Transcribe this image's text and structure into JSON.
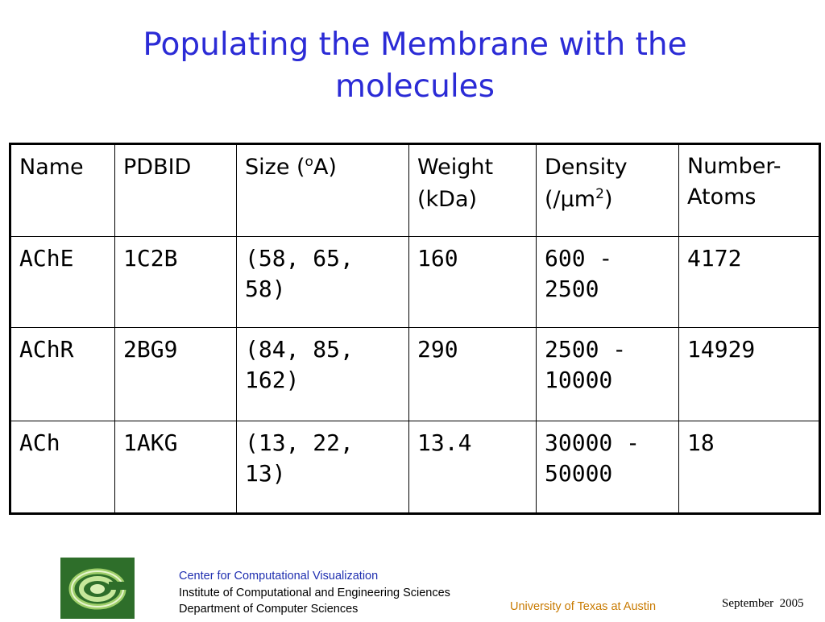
{
  "title": "Populating the Membrane with the molecules",
  "table": {
    "headers": {
      "name": "Name",
      "pdbid": "PDBID",
      "size_pre": "Size (",
      "size_sup": "o",
      "size_post": "A)",
      "weight_l1": "Weight",
      "weight_l2": "(kDa)",
      "density_pre": "Density",
      "density_l2a": "(/μm",
      "density_sup": "2",
      "density_l2b": ")",
      "atoms": "Number-Atoms"
    },
    "rows": [
      {
        "name": "AChE",
        "pdbid": "1C2B",
        "size": "(58, 65, 58)",
        "weight": "160",
        "density": "600 - 2500",
        "atoms": "4172"
      },
      {
        "name": "AChR",
        "pdbid": "2BG9",
        "size": "(84, 85, 162)",
        "weight": "290",
        "density": "2500 - 10000",
        "atoms": "14929"
      },
      {
        "name": "ACh",
        "pdbid": "1AKG",
        "size": "(13, 22, 13)",
        "weight": "13.4",
        "density": "30000 - 50000",
        "atoms": "18"
      }
    ]
  },
  "footer": {
    "line1": "Center for Computational Visualization",
    "line2": "Institute of Computational and Engineering Sciences",
    "line3": "Department of Computer Sciences",
    "university": "University of Texas at Austin",
    "date": "September  2005"
  },
  "colors": {
    "title": "#2b2bd6",
    "footer_blue": "#1f2fb0",
    "university": "#c87a00",
    "logo_bg": "#2e6e2a"
  },
  "logo_icon": "cvc-logo-icon"
}
